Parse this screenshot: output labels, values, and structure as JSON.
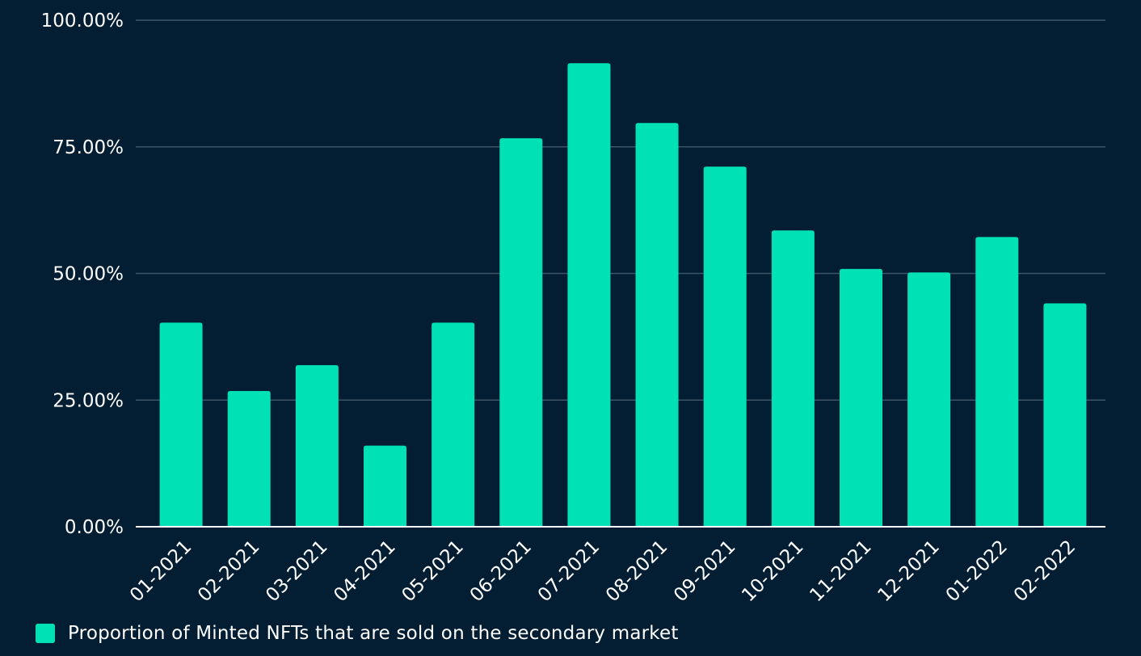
{
  "colors": {
    "background": "#031e33",
    "bar": "#00e2b5",
    "grid": "#3c5466",
    "axis": "#ffffff",
    "text": "#ffffff"
  },
  "chart_data": {
    "type": "bar",
    "title": "",
    "xlabel": "",
    "ylabel": "",
    "categories": [
      "01-2021",
      "02-2021",
      "03-2021",
      "04-2021",
      "05-2021",
      "06-2021",
      "07-2021",
      "08-2021",
      "09-2021",
      "10-2021",
      "11-2021",
      "12-2021",
      "01-2022",
      "02-2022"
    ],
    "series": [
      {
        "name": "Proportion of Minted NFTs that are sold on the secondary market",
        "values": [
          40.3,
          26.8,
          31.9,
          16.0,
          40.3,
          76.7,
          91.5,
          79.7,
          71.1,
          58.5,
          50.9,
          50.2,
          57.2,
          44.1
        ]
      }
    ],
    "ylim": [
      0,
      100
    ],
    "yticks": [
      0,
      25,
      50,
      75,
      100
    ],
    "ytick_labels": [
      "0.00%",
      "25.00%",
      "50.00%",
      "75.00%",
      "100.00%"
    ],
    "grid": true,
    "legend_position": "bottom-left"
  }
}
